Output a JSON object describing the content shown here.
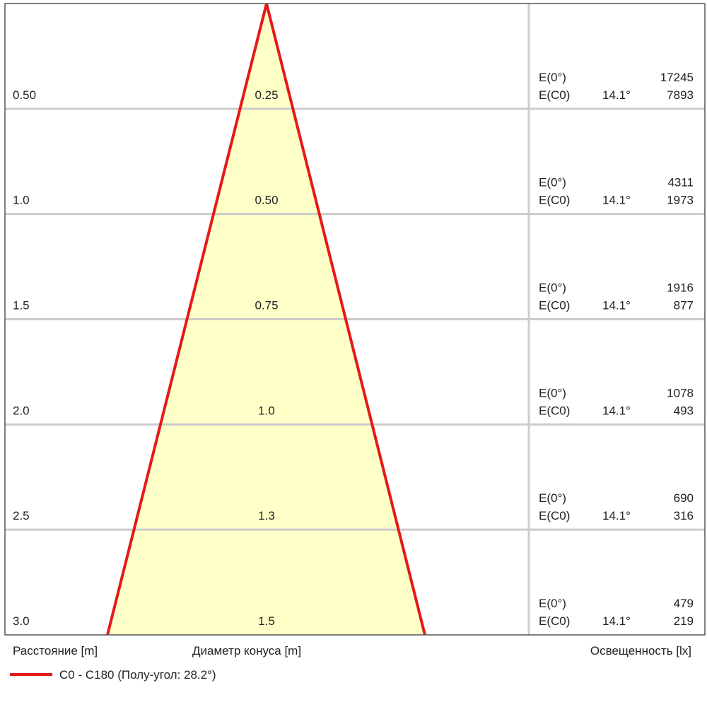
{
  "rows": [
    {
      "distance": "0.50",
      "diameter": "0.25",
      "e0_label": "E(0°)",
      "e0_value": "17245",
      "ec0_label": "E(C0)",
      "ec0_angle": "14.1°",
      "ec0_value": "7893"
    },
    {
      "distance": "1.0",
      "diameter": "0.50",
      "e0_label": "E(0°)",
      "e0_value": "4311",
      "ec0_label": "E(C0)",
      "ec0_angle": "14.1°",
      "ec0_value": "1973"
    },
    {
      "distance": "1.5",
      "diameter": "0.75",
      "e0_label": "E(0°)",
      "e0_value": "1916",
      "ec0_label": "E(C0)",
      "ec0_angle": "14.1°",
      "ec0_value": "877"
    },
    {
      "distance": "2.0",
      "diameter": "1.0",
      "e0_label": "E(0°)",
      "e0_value": "1078",
      "ec0_label": "E(C0)",
      "ec0_angle": "14.1°",
      "ec0_value": "493"
    },
    {
      "distance": "2.5",
      "diameter": "1.3",
      "e0_label": "E(0°)",
      "e0_value": "690",
      "ec0_label": "E(C0)",
      "ec0_angle": "14.1°",
      "ec0_value": "316"
    },
    {
      "distance": "3.0",
      "diameter": "1.5",
      "e0_label": "E(0°)",
      "e0_value": "479",
      "ec0_label": "E(C0)",
      "ec0_angle": "14.1°",
      "ec0_value": "219"
    }
  ],
  "footer": {
    "distance_label": "Расстояние [m]",
    "diameter_label": "Диаметр конуса [m]",
    "illuminance_label": "Освещенность [lx]"
  },
  "legend": {
    "label": "C0 - C180 (Полу-угол: 28.2°)"
  }
}
